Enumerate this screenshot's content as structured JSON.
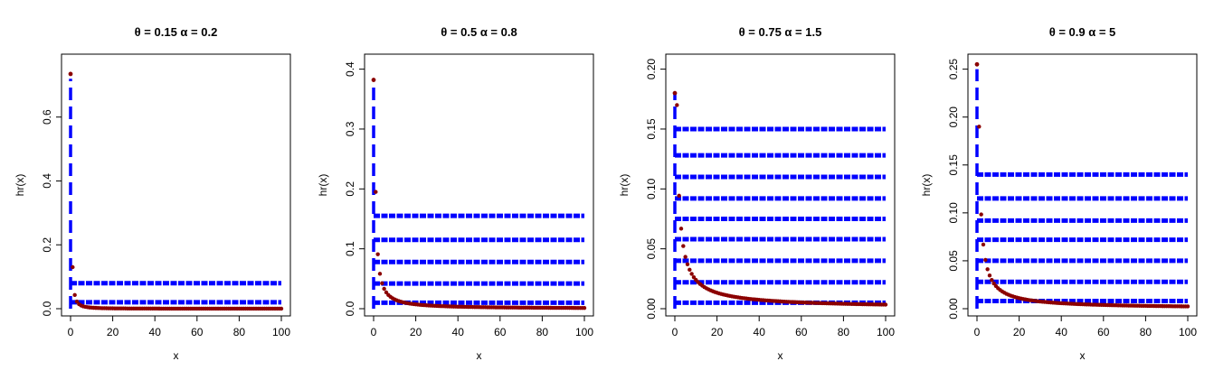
{
  "chart_data": [
    {
      "type": "scatter",
      "title": "θ = 0.15  α = 0.2",
      "xlabel": "x",
      "ylabel": "hr(x)",
      "xlim": [
        0,
        100
      ],
      "ylim": [
        0,
        0.75
      ],
      "xticks": [
        "0",
        "20",
        "40",
        "60",
        "80",
        "100"
      ],
      "yticks": [
        "0.0",
        "0.2",
        "0.4",
        "0.6"
      ],
      "ytick_values": [
        0,
        0.2,
        0.4,
        0.6
      ],
      "first_point": 0.735,
      "peak_line": 0.72,
      "second_point": 0.13,
      "decay_power": 1.6,
      "stripe_levels": [
        0.08,
        0.02
      ],
      "point_color": "#8B0000",
      "line_color": "#0000FF"
    },
    {
      "type": "scatter",
      "title": "θ = 0.5  α = 0.8",
      "xlabel": "x",
      "ylabel": "hr(x)",
      "xlim": [
        0,
        100
      ],
      "ylim": [
        0,
        0.4
      ],
      "xticks": [
        "0",
        "20",
        "40",
        "60",
        "80",
        "100"
      ],
      "yticks": [
        "0.0",
        "0.1",
        "0.2",
        "0.3",
        "0.4"
      ],
      "ytick_values": [
        0,
        0.1,
        0.2,
        0.3,
        0.4
      ],
      "first_point": 0.382,
      "peak_line": 0.38,
      "second_point": 0.195,
      "decay_power": 1.1,
      "stripe_levels": [
        0.155,
        0.115,
        0.078,
        0.042,
        0.01
      ],
      "point_color": "#8B0000",
      "line_color": "#0000FF"
    },
    {
      "type": "scatter",
      "title": "θ = 0.75  α = 1.5",
      "xlabel": "x",
      "ylabel": "hr(x)",
      "xlim": [
        0,
        100
      ],
      "ylim": [
        0,
        0.2
      ],
      "xticks": [
        "0",
        "20",
        "40",
        "60",
        "80",
        "100"
      ],
      "yticks": [
        "0.00",
        "0.05",
        "0.10",
        "0.15",
        "0.20"
      ],
      "ytick_values": [
        0,
        0.05,
        0.1,
        0.15,
        0.2
      ],
      "first_point": 0.18,
      "peak_line": 0.18,
      "second_point": 0.17,
      "decay_power": 0.85,
      "stripe_levels": [
        0.15,
        0.128,
        0.11,
        0.092,
        0.075,
        0.058,
        0.04,
        0.022,
        0.005
      ],
      "point_color": "#8B0000",
      "line_color": "#0000FF"
    },
    {
      "type": "scatter",
      "title": "θ = 0.9  α = 5",
      "xlabel": "x",
      "ylabel": "hr(x)",
      "xlim": [
        0,
        100
      ],
      "ylim": [
        0,
        0.25
      ],
      "xticks": [
        "0",
        "20",
        "40",
        "60",
        "80",
        "100"
      ],
      "yticks": [
        "0.00",
        "0.05",
        "0.10",
        "0.15",
        "0.20",
        "0.25"
      ],
      "ytick_values": [
        0,
        0.05,
        0.1,
        0.15,
        0.2,
        0.25
      ],
      "first_point": 0.255,
      "peak_line": 0.25,
      "second_point": 0.19,
      "decay_power": 0.95,
      "stripe_levels": [
        0.14,
        0.115,
        0.092,
        0.072,
        0.05,
        0.028,
        0.008
      ],
      "point_color": "#8B0000",
      "line_color": "#0000FF"
    }
  ]
}
